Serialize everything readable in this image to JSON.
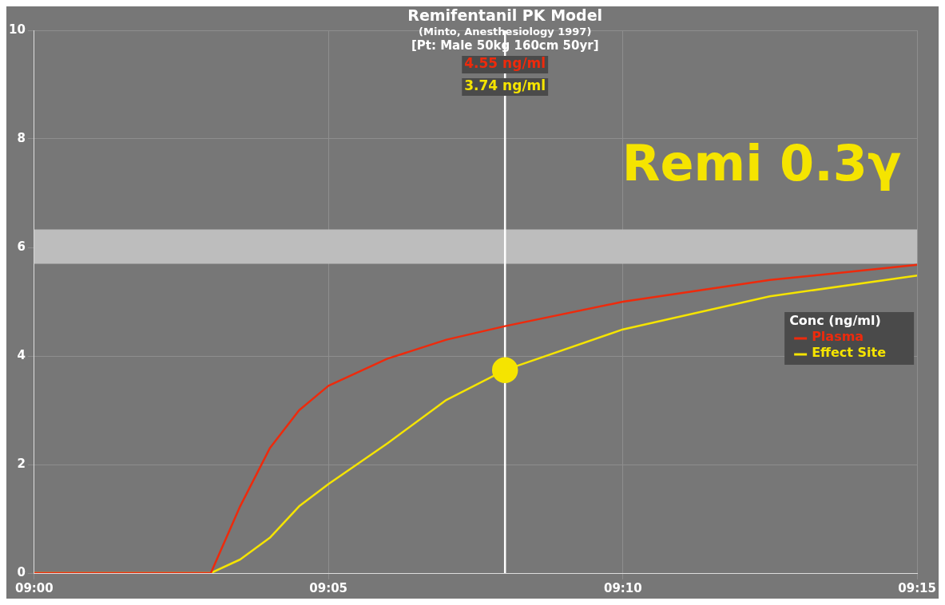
{
  "chart_data": {
    "type": "line",
    "title": "Remifentanil PK Model",
    "subtitle": "(Minto, Anesthesiology 1997)",
    "legend_title": "Conc (ng/ml)",
    "annotations": [
      "[Pt: Male 50kg 160cm 50yr]",
      "Remi 0.3γ",
      "4.55 ng/ml",
      "3.74 ng/ml"
    ],
    "series": [
      {
        "name": "Plasma",
        "color": "#ee2a0c",
        "marker": "none",
        "x": [
          9,
          9.05,
          9.0583,
          9.0667,
          9.075,
          9.0833,
          9.1,
          9.1167,
          9.1333,
          9.1667,
          9.2083,
          9.25
        ],
        "values": [
          0,
          0,
          1.23,
          2.3,
          3.0,
          3.45,
          3.95,
          4.3,
          4.55,
          5.0,
          5.4,
          5.68
        ]
      },
      {
        "name": "Effect Site",
        "color": "#f5e400",
        "marker": "none",
        "x": [
          9,
          9.05,
          9.0583,
          9.0667,
          9.075,
          9.0833,
          9.1,
          9.1167,
          9.1333,
          9.1667,
          9.2083,
          9.25
        ],
        "values": [
          0,
          0,
          0.25,
          0.65,
          1.23,
          1.64,
          2.39,
          3.19,
          3.74,
          4.49,
          5.1,
          5.48
        ]
      },
      {
        "type": "scatter",
        "color": "#f5e400",
        "marker": "circle",
        "x": [
          9.1333
        ],
        "values": [
          3.74
        ]
      }
    ],
    "xlim": [
      9,
      9.25
    ],
    "xticks": [
      {
        "value": 9,
        "label": "09:00"
      },
      {
        "value": 9.0833,
        "label": "09:05"
      },
      {
        "value": 9.1667,
        "label": "09:10"
      },
      {
        "value": 9.25,
        "label": "09:15"
      }
    ],
    "ylim": [
      0,
      10
    ],
    "yticks": [
      0,
      2,
      4,
      6,
      8,
      10
    ],
    "ref_lines": [
      {
        "axis": "x",
        "value": 9.1333,
        "color": "#ffffff"
      }
    ],
    "bands": [
      {
        "axis": "y",
        "from": 5.7,
        "to": 6.33,
        "color": "#bdbdbd"
      }
    ],
    "grid": true,
    "legend": "right"
  }
}
